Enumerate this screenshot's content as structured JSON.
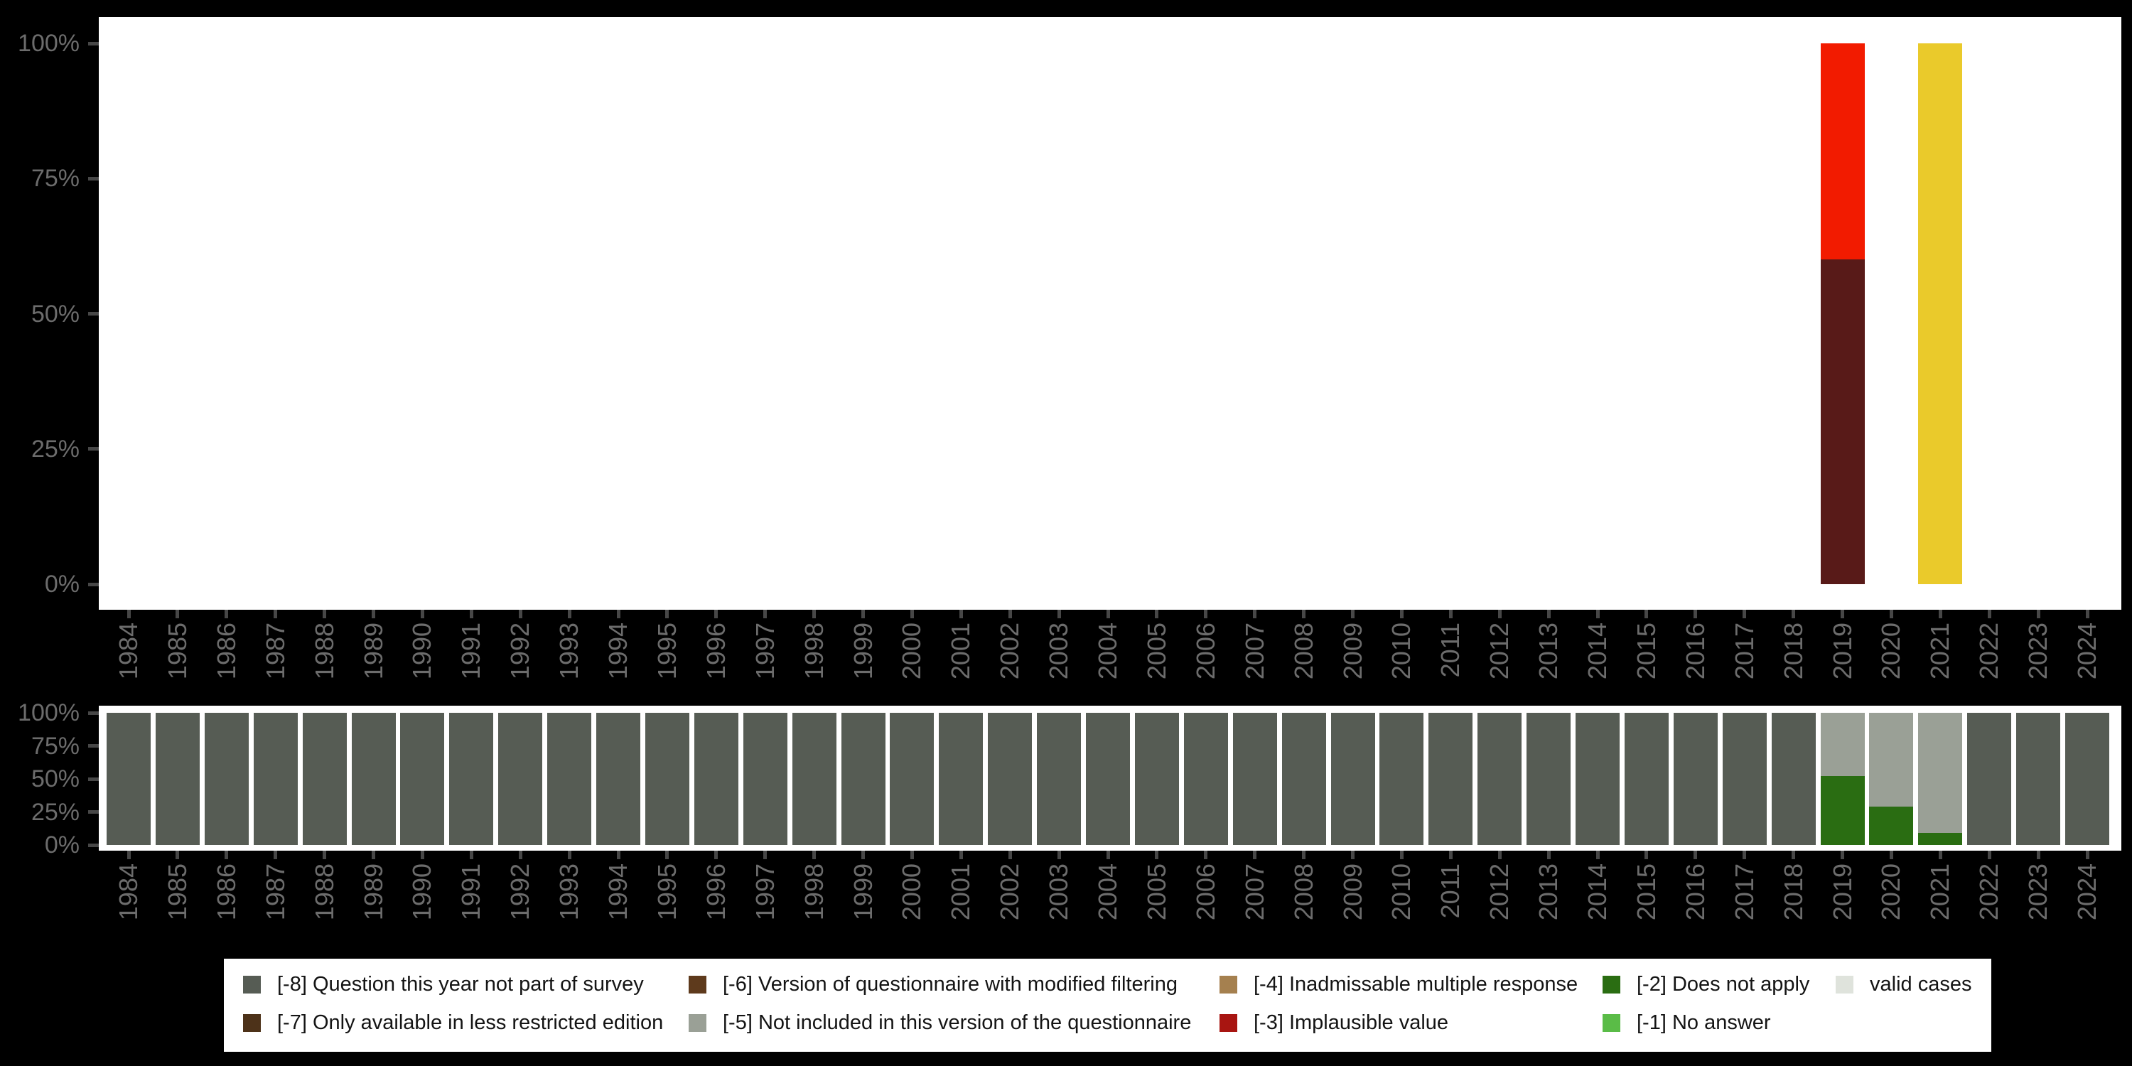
{
  "page": {
    "background_color": "#000000",
    "plot_background_color": "#ffffff",
    "axis_tick_color": "#474747",
    "axis_label_color": "#6c6c6c"
  },
  "chart_data": [
    {
      "type": "bar",
      "stacked": true,
      "name": "per-year category distribution (top chart)",
      "categories": [
        "1984",
        "1985",
        "1986",
        "1987",
        "1988",
        "1989",
        "1990",
        "1991",
        "1992",
        "1993",
        "1994",
        "1995",
        "1996",
        "1997",
        "1998",
        "1999",
        "2000",
        "2001",
        "2002",
        "2003",
        "2004",
        "2005",
        "2006",
        "2007",
        "2008",
        "2009",
        "2010",
        "2011",
        "2012",
        "2013",
        "2014",
        "2015",
        "2016",
        "2017",
        "2018",
        "2019",
        "2020",
        "2021",
        "2022",
        "2023",
        "2024"
      ],
      "ylim": [
        0,
        100
      ],
      "ytick_labels": [
        "0%",
        "25%",
        "50%",
        "75%",
        "100%"
      ],
      "grid": false,
      "series": [
        {
          "name": "dark-maroon-segment",
          "color": "#581a18",
          "values": [
            0,
            0,
            0,
            0,
            0,
            0,
            0,
            0,
            0,
            0,
            0,
            0,
            0,
            0,
            0,
            0,
            0,
            0,
            0,
            0,
            0,
            0,
            0,
            0,
            0,
            0,
            0,
            0,
            0,
            0,
            0,
            0,
            0,
            0,
            0,
            60,
            0,
            0,
            0,
            0,
            0
          ]
        },
        {
          "name": "red-segment",
          "color": "#f21b00",
          "values": [
            0,
            0,
            0,
            0,
            0,
            0,
            0,
            0,
            0,
            0,
            0,
            0,
            0,
            0,
            0,
            0,
            0,
            0,
            0,
            0,
            0,
            0,
            0,
            0,
            0,
            0,
            0,
            0,
            0,
            0,
            0,
            0,
            0,
            0,
            0,
            40,
            0,
            0,
            0,
            0,
            0
          ]
        },
        {
          "name": "yellow-segment",
          "color": "#eaca2b",
          "values": [
            0,
            0,
            0,
            0,
            0,
            0,
            0,
            0,
            0,
            0,
            0,
            0,
            0,
            0,
            0,
            0,
            0,
            0,
            0,
            0,
            0,
            0,
            0,
            0,
            0,
            0,
            0,
            0,
            0,
            0,
            0,
            0,
            0,
            0,
            0,
            0,
            0,
            100,
            0,
            0,
            0
          ]
        }
      ]
    },
    {
      "type": "bar",
      "stacked": true,
      "name": "per-year missing-values composition (bottom chart)",
      "categories": [
        "1984",
        "1985",
        "1986",
        "1987",
        "1988",
        "1989",
        "1990",
        "1991",
        "1992",
        "1993",
        "1994",
        "1995",
        "1996",
        "1997",
        "1998",
        "1999",
        "2000",
        "2001",
        "2002",
        "2003",
        "2004",
        "2005",
        "2006",
        "2007",
        "2008",
        "2009",
        "2010",
        "2011",
        "2012",
        "2013",
        "2014",
        "2015",
        "2016",
        "2017",
        "2018",
        "2019",
        "2020",
        "2021",
        "2022",
        "2023",
        "2024"
      ],
      "ylim": [
        0,
        100
      ],
      "ytick_labels": [
        "0%",
        "25%",
        "50%",
        "75%",
        "100%"
      ],
      "grid": false,
      "series": [
        {
          "name": "[-2] Does not apply",
          "color": "#2a6d12",
          "values": [
            0,
            0,
            0,
            0,
            0,
            0,
            0,
            0,
            0,
            0,
            0,
            0,
            0,
            0,
            0,
            0,
            0,
            0,
            0,
            0,
            0,
            0,
            0,
            0,
            0,
            0,
            0,
            0,
            0,
            0,
            0,
            0,
            0,
            0,
            0,
            52,
            29,
            9,
            0,
            0,
            0
          ]
        },
        {
          "name": "[-5] Not included in this version of the questionnaire",
          "color": "#9aa096",
          "values": [
            0,
            0,
            0,
            0,
            0,
            0,
            0,
            0,
            0,
            0,
            0,
            0,
            0,
            0,
            0,
            0,
            0,
            0,
            0,
            0,
            0,
            0,
            0,
            0,
            0,
            0,
            0,
            0,
            0,
            0,
            0,
            0,
            0,
            0,
            0,
            48,
            71,
            91,
            0,
            0,
            0
          ]
        },
        {
          "name": "[-8] Question this year not part of survey",
          "color": "#565c54",
          "values": [
            100,
            100,
            100,
            100,
            100,
            100,
            100,
            100,
            100,
            100,
            100,
            100,
            100,
            100,
            100,
            100,
            100,
            100,
            100,
            100,
            100,
            100,
            100,
            100,
            100,
            100,
            100,
            100,
            100,
            100,
            100,
            100,
            100,
            100,
            100,
            0,
            0,
            0,
            100,
            100,
            100
          ]
        }
      ]
    }
  ],
  "legend": {
    "background_color": "#ffffff",
    "rows": [
      [
        {
          "code": "[-8]",
          "text": "Question this year not part of survey",
          "color": "#565c54"
        },
        {
          "code": "[-6]",
          "text": "Version of questionnaire with modified filtering",
          "color": "#5e3a1c"
        },
        {
          "code": "[-4]",
          "text": "Inadmissable multiple response",
          "color": "#a5804f"
        },
        {
          "code": "[-2]",
          "text": "Does not apply",
          "color": "#2a6d12"
        },
        {
          "code": "",
          "text": "valid cases",
          "color": "#dfe3dc"
        }
      ],
      [
        {
          "code": "[-7]",
          "text": "Only available in less restricted edition",
          "color": "#4d3219"
        },
        {
          "code": "[-5]",
          "text": "Not included in this version of the questionnaire",
          "color": "#9aa096"
        },
        {
          "code": "[-3]",
          "text": "Implausible value",
          "color": "#a81511"
        },
        {
          "code": "[-1]",
          "text": "No answer",
          "color": "#5abc47"
        }
      ]
    ]
  }
}
